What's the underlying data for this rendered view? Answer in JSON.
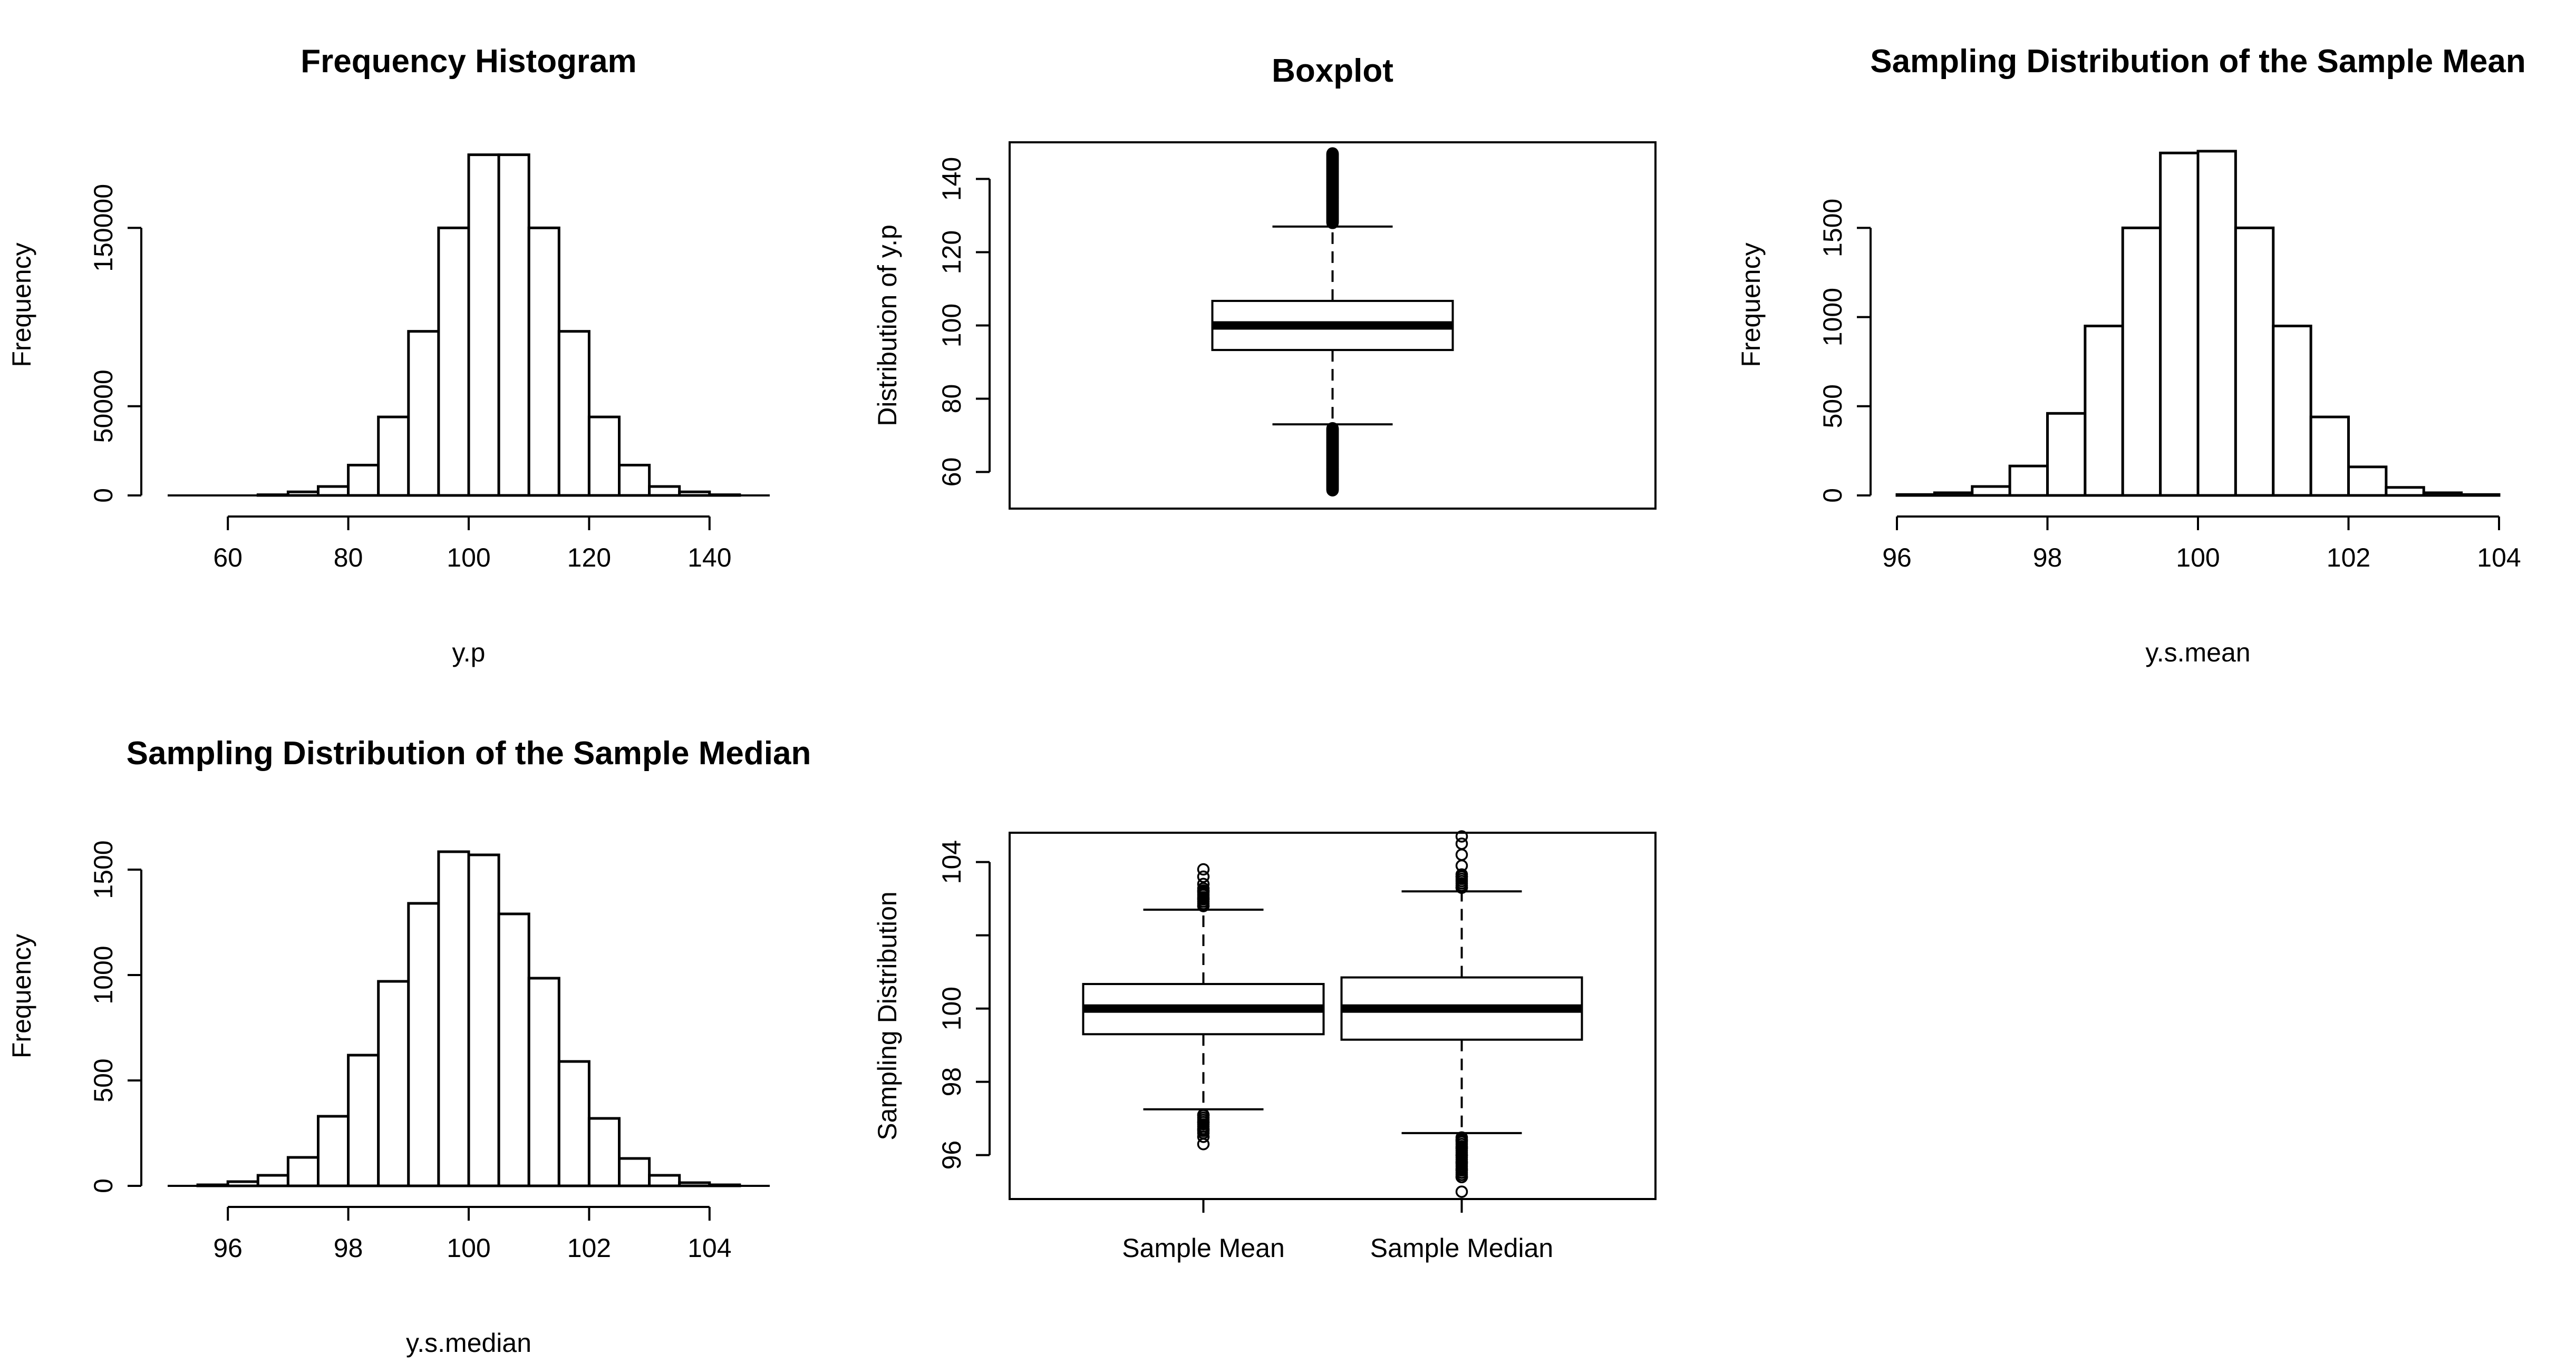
{
  "chart_data": [
    {
      "id": "p1",
      "type": "histogram",
      "title": "Frequency Histogram",
      "xlabel": "y.p",
      "ylabel": "Frequency",
      "xlim": [
        50,
        150
      ],
      "ylim": [
        0,
        190000
      ],
      "xticks": [
        60,
        80,
        100,
        120,
        140
      ],
      "yticks": [
        0,
        50000,
        150000
      ],
      "bin_width": 5,
      "bins": [
        {
          "x0": 65,
          "count": 400
        },
        {
          "x0": 70,
          "count": 2000
        },
        {
          "x0": 75,
          "count": 5000
        },
        {
          "x0": 80,
          "count": 17000
        },
        {
          "x0": 85,
          "count": 44000
        },
        {
          "x0": 90,
          "count": 92000
        },
        {
          "x0": 95,
          "count": 150000
        },
        {
          "x0": 100,
          "count": 191000
        },
        {
          "x0": 105,
          "count": 191000
        },
        {
          "x0": 110,
          "count": 150000
        },
        {
          "x0": 115,
          "count": 92000
        },
        {
          "x0": 120,
          "count": 44000
        },
        {
          "x0": 125,
          "count": 17000
        },
        {
          "x0": 130,
          "count": 5000
        },
        {
          "x0": 135,
          "count": 2000
        },
        {
          "x0": 140,
          "count": 400
        }
      ]
    },
    {
      "id": "p2",
      "type": "boxplot",
      "title": "Boxplot",
      "xlabel": "",
      "ylabel": "Distribution of y.p",
      "ylim": [
        50,
        150
      ],
      "yticks": [
        60,
        80,
        100,
        120,
        140
      ],
      "boxes": [
        {
          "label": "",
          "q1": 93.3,
          "median": 100,
          "q3": 106.7,
          "whisker_low": 73,
          "whisker_high": 127,
          "outliers_low": [
            55,
            57,
            60,
            63,
            66,
            68,
            70,
            72
          ],
          "outliers_high": [
            128,
            130,
            133,
            136,
            139,
            142,
            145,
            147
          ]
        }
      ]
    },
    {
      "id": "p3",
      "type": "histogram",
      "title": "Sampling Distribution of the Sample Mean",
      "xlabel": "y.s.mean",
      "ylabel": "Frequency",
      "xlim": [
        96,
        104
      ],
      "ylim": [
        0,
        1900
      ],
      "xticks": [
        96,
        98,
        100,
        102,
        104
      ],
      "yticks": [
        0,
        500,
        1000,
        1500
      ],
      "bin_width": 0.5,
      "bins": [
        {
          "x0": 96.0,
          "count": 5
        },
        {
          "x0": 96.5,
          "count": 15
        },
        {
          "x0": 97.0,
          "count": 50
        },
        {
          "x0": 97.5,
          "count": 165
        },
        {
          "x0": 98.0,
          "count": 460
        },
        {
          "x0": 98.5,
          "count": 950
        },
        {
          "x0": 99.0,
          "count": 1500
        },
        {
          "x0": 99.5,
          "count": 1920
        },
        {
          "x0": 100.0,
          "count": 1930
        },
        {
          "x0": 100.5,
          "count": 1500
        },
        {
          "x0": 101.0,
          "count": 950
        },
        {
          "x0": 101.5,
          "count": 440
        },
        {
          "x0": 102.0,
          "count": 160
        },
        {
          "x0": 102.5,
          "count": 45
        },
        {
          "x0": 103.0,
          "count": 15
        },
        {
          "x0": 103.5,
          "count": 5
        }
      ]
    },
    {
      "id": "p4",
      "type": "histogram",
      "title": "Sampling Distribution of the Sample Median",
      "xlabel": "y.s.median",
      "ylabel": "Frequency",
      "xlim": [
        95,
        105
      ],
      "ylim": [
        0,
        1600
      ],
      "xticks": [
        96,
        98,
        100,
        102,
        104
      ],
      "yticks": [
        0,
        500,
        1000,
        1500
      ],
      "bin_width": 0.5,
      "bins": [
        {
          "x0": 95.5,
          "count": 5
        },
        {
          "x0": 96.0,
          "count": 20
        },
        {
          "x0": 96.5,
          "count": 50
        },
        {
          "x0": 97.0,
          "count": 135
        },
        {
          "x0": 97.5,
          "count": 330
        },
        {
          "x0": 98.0,
          "count": 620
        },
        {
          "x0": 98.5,
          "count": 970
        },
        {
          "x0": 99.0,
          "count": 1340
        },
        {
          "x0": 99.5,
          "count": 1585
        },
        {
          "x0": 100.0,
          "count": 1570
        },
        {
          "x0": 100.5,
          "count": 1290
        },
        {
          "x0": 101.0,
          "count": 985
        },
        {
          "x0": 101.5,
          "count": 590
        },
        {
          "x0": 102.0,
          "count": 320
        },
        {
          "x0": 102.5,
          "count": 130
        },
        {
          "x0": 103.0,
          "count": 50
        },
        {
          "x0": 103.5,
          "count": 15
        },
        {
          "x0": 104.0,
          "count": 5
        }
      ]
    },
    {
      "id": "p5",
      "type": "boxplot",
      "title": "",
      "xlabel": "",
      "ylabel": "Sampling Distribution",
      "ylim": [
        94.8,
        104.8
      ],
      "yticks": [
        96,
        98,
        100,
        104
      ],
      "boxes": [
        {
          "label": "Sample Mean",
          "q1": 99.3,
          "median": 100,
          "q3": 100.67,
          "whisker_low": 97.25,
          "whisker_high": 102.7,
          "outliers_low": [
            96.3,
            96.5,
            96.7,
            96.9,
            97.1
          ],
          "outliers_high": [
            102.8,
            103.0,
            103.2,
            103.4,
            103.6,
            103.8
          ]
        },
        {
          "label": "Sample Median",
          "q1": 99.15,
          "median": 100,
          "q3": 100.85,
          "whisker_low": 96.6,
          "whisker_high": 103.2,
          "outliers_low": [
            95.0,
            95.4,
            95.6,
            95.8,
            96.0,
            96.2,
            96.4
          ],
          "outliers_high": [
            103.3,
            103.6,
            103.9,
            104.2,
            104.5,
            104.7
          ]
        }
      ]
    }
  ]
}
